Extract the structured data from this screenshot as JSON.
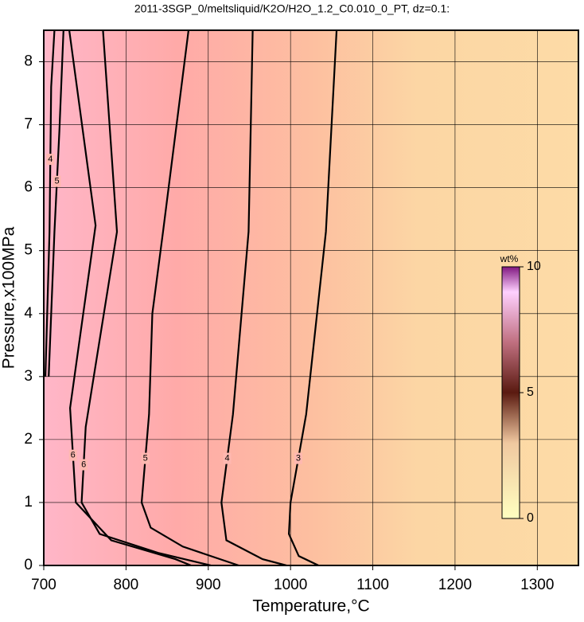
{
  "chart_data": {
    "type": "contour",
    "title": "2011-3SGP_0/meltsliquid/K2O/H2O_1.2_C0.010_0_PT, dz=0.1:",
    "x_label": "Temperature,°C",
    "y_label": "Pressure,x100MPa",
    "xlim": [
      700,
      1350
    ],
    "xticks": [
      700,
      800,
      900,
      1000,
      1100,
      1200,
      1300
    ],
    "ylim": [
      0,
      8.5
    ],
    "yticks": [
      0,
      1,
      2,
      3,
      4,
      5,
      6,
      7,
      8
    ],
    "grid": true,
    "contours": [
      {
        "level": 4,
        "x": [
          713,
          709,
          707,
          702
        ],
        "y": [
          8.5,
          7.6,
          5.3,
          3
        ]
      },
      {
        "level": 5,
        "x": [
          724,
          719,
          713,
          706
        ],
        "y": [
          8.5,
          6.9,
          5.3,
          3
        ]
      },
      {
        "level": 6,
        "x": [
          731,
          763,
          748,
          732,
          739,
          782,
          860,
          879
        ],
        "y": [
          8.5,
          5.4,
          4,
          2.5,
          1,
          0.4,
          0.1,
          0
        ]
      },
      {
        "level": 6,
        "x": [
          772,
          789,
          751,
          746,
          768,
          839,
          903
        ],
        "y": [
          8.5,
          5.3,
          2.2,
          1,
          0.5,
          0.2,
          0
        ]
      },
      {
        "level": 5,
        "x": [
          876,
          845,
          832,
          828,
          819,
          830,
          869,
          937
        ],
        "y": [
          8.5,
          5.3,
          4,
          2.4,
          1,
          0.6,
          0.3,
          0
        ]
      },
      {
        "level": 4,
        "x": [
          954,
          952,
          949,
          930,
          916,
          922,
          966,
          995
        ],
        "y": [
          8.5,
          7.2,
          5.3,
          2.4,
          1,
          0.4,
          0.1,
          0
        ]
      },
      {
        "level": 3,
        "x": [
          1056,
          1043,
          1019,
          1000,
          998,
          1010,
          1034
        ],
        "y": [
          8.5,
          5.3,
          2.4,
          1,
          0.5,
          0.15,
          0
        ]
      }
    ],
    "colorbar": {
      "label": "wt%",
      "lim": [
        0,
        10
      ],
      "ticks": [
        0,
        5,
        10
      ]
    }
  }
}
